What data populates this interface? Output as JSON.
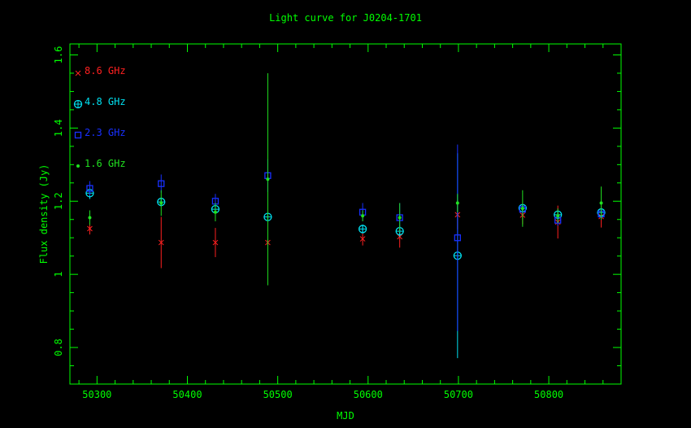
{
  "chart_data": {
    "type": "scatter",
    "title": "Light curve for J0204-1701",
    "xlabel": "MJD",
    "ylabel": "Flux density (Jy)",
    "xlim": [
      50270,
      50880
    ],
    "ylim": [
      0.7,
      1.63
    ],
    "xticks": [
      50300,
      50400,
      50500,
      50600,
      50700,
      50800
    ],
    "yticks": [
      0.8,
      1,
      1.2,
      1.4,
      1.6
    ],
    "ytick_labels": [
      "0.8",
      "1",
      "1.2",
      "1.4",
      "1.6"
    ],
    "legend_placement": "top-left",
    "colors": {
      "axes": "#00ff00",
      "title": "#00ff00"
    },
    "series": [
      {
        "name": "8.6 GHz",
        "color": "#ff2020",
        "marker": "x",
        "x": [
          50292,
          50371,
          50431,
          50489,
          50594,
          50635,
          50699,
          50771,
          50810,
          50858
        ],
        "y": [
          1.125,
          1.087,
          1.087,
          1.087,
          1.097,
          1.103,
          1.163,
          1.162,
          1.143,
          1.158
        ],
        "err": [
          0.016,
          0.07,
          0.04,
          0.008,
          0.018,
          0.03,
          0.04,
          0.025,
          0.045,
          0.03
        ]
      },
      {
        "name": "4.8 GHz",
        "color": "#00e0f0",
        "marker": "circle-plus",
        "x": [
          50292,
          50371,
          50431,
          50489,
          50594,
          50635,
          50699,
          50771,
          50810,
          50858
        ],
        "y": [
          1.222,
          1.198,
          1.178,
          1.157,
          1.124,
          1.118,
          1.051,
          1.181,
          1.163,
          1.169
        ],
        "err": [
          0.016,
          0.012,
          0.012,
          0.01,
          0.012,
          0.015,
          0.28,
          0.01,
          0.012,
          0.012
        ]
      },
      {
        "name": "2.3 GHz",
        "color": "#1830ff",
        "marker": "square",
        "x": [
          50292,
          50371,
          50431,
          50489,
          50594,
          50635,
          50699,
          50771,
          50810,
          50858
        ],
        "y": [
          1.235,
          1.248,
          1.2,
          1.27,
          1.17,
          1.155,
          1.1,
          1.178,
          1.148,
          1.165
        ],
        "err": [
          0.02,
          0.025,
          0.02,
          0.045,
          0.025,
          0.04,
          0.255,
          0.015,
          0.015,
          0.015
        ]
      },
      {
        "name": "1.6 GHz",
        "color": "#20e020",
        "marker": "dot",
        "x": [
          50292,
          50371,
          50431,
          50489,
          50594,
          50635,
          50699,
          50771,
          50810,
          50858
        ],
        "y": [
          1.155,
          1.195,
          1.17,
          1.26,
          1.16,
          1.155,
          1.195,
          1.18,
          1.16,
          1.195
        ],
        "err": [
          0.02,
          0.035,
          0.025,
          0.29,
          0.015,
          0.04,
          0.025,
          0.05,
          0.02,
          0.045
        ]
      }
    ]
  }
}
